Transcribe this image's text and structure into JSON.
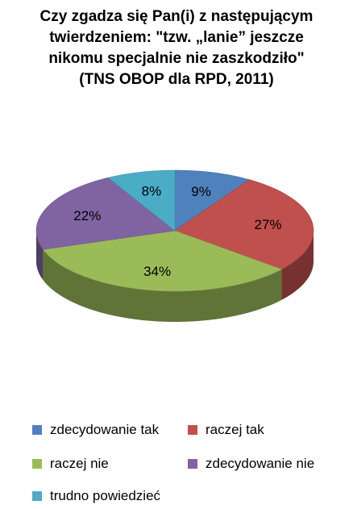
{
  "chart_data": {
    "type": "pie",
    "title_lines": [
      "Czy zgadza się Pan(i) z następującym",
      "twierdzeniem: \"tzw. „lanie” jeszcze",
      "nikomu specjalnie nie zaszkodziło\"",
      "(TNS OBOP dla RPD, 2011)"
    ],
    "three_d": true,
    "legend_position": "bottom",
    "slices": [
      {
        "label": "zdecydowanie tak",
        "value": 9,
        "value_label": "9%",
        "color": "#4f81bd"
      },
      {
        "label": "raczej tak",
        "value": 27,
        "value_label": "27%",
        "color": "#c0504d"
      },
      {
        "label": "raczej nie",
        "value": 34,
        "value_label": "34%",
        "color": "#9bbb59"
      },
      {
        "label": "zdecydowanie nie",
        "value": 22,
        "value_label": "22%",
        "color": "#8064a2"
      },
      {
        "label": "trudno powiedzieć",
        "value": 8,
        "value_label": "8%",
        "color": "#4bacc6"
      }
    ]
  }
}
